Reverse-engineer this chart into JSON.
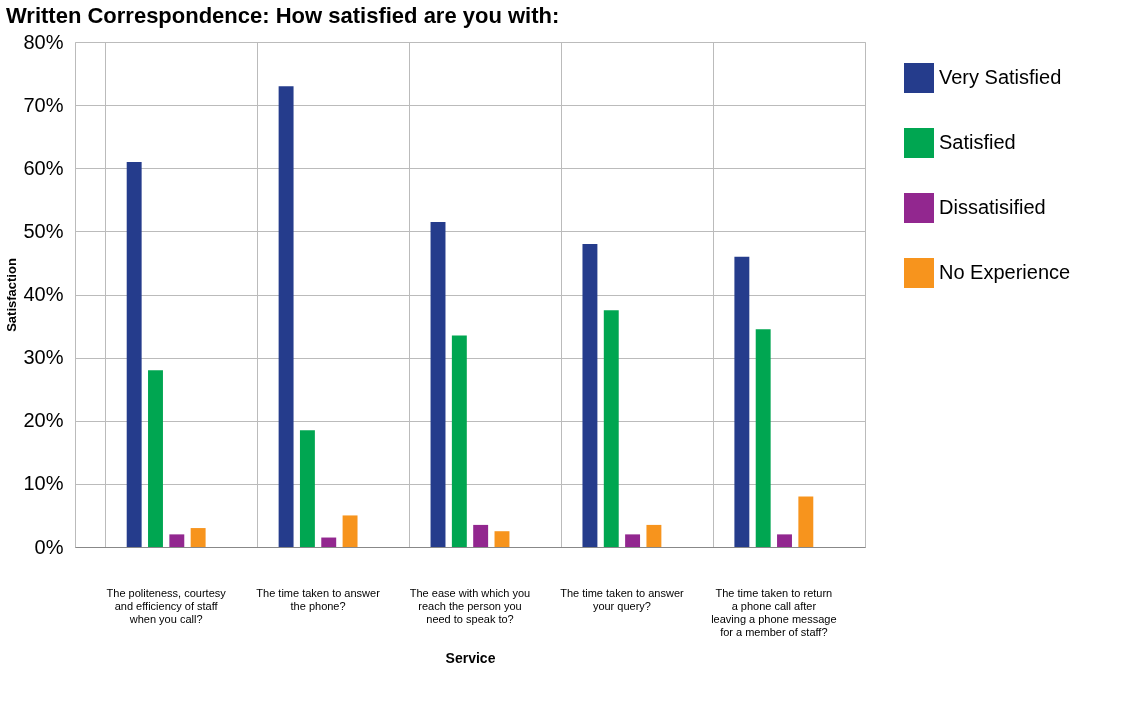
{
  "chart_data": {
    "type": "bar",
    "title": "Written Correspondence: How satisfied are you with:",
    "xlabel": "Service",
    "ylabel": "Satisfaction",
    "categories": [
      "The politeness, courtesy and efficiency of staff when you call?",
      "The time taken to answer the phone?",
      "The ease with which you reach the person you need to speak to?",
      "The time taken to answer your query?",
      "The time taken to return a phone call after leaving a phone message for a member of staff?"
    ],
    "series": [
      {
        "name": "Very Satisfied",
        "color": "#253c8c",
        "values": [
          61,
          73,
          51.5,
          48,
          46
        ]
      },
      {
        "name": "Satisfied",
        "color": "#00a651",
        "values": [
          28,
          18.5,
          33.5,
          37.5,
          34.5
        ]
      },
      {
        "name": "Dissatisified",
        "color": "#92278f",
        "values": [
          2,
          1.5,
          3.5,
          2,
          2
        ]
      },
      {
        "name": "No Experience",
        "color": "#f7941d",
        "values": [
          3,
          5,
          2.5,
          3.5,
          8
        ]
      }
    ],
    "ylim": [
      0,
      80
    ],
    "yticks": [
      {
        "value": 0,
        "label": "0%"
      },
      {
        "value": 10,
        "label": "10%"
      },
      {
        "value": 20,
        "label": "20%"
      },
      {
        "value": 30,
        "label": "30%"
      },
      {
        "value": 40,
        "label": "40%"
      },
      {
        "value": 50,
        "label": "50%"
      },
      {
        "value": 60,
        "label": "60%"
      },
      {
        "value": 70,
        "label": "70%"
      },
      {
        "value": 80,
        "label": "80%"
      }
    ],
    "grid": true,
    "legend": "top right"
  }
}
